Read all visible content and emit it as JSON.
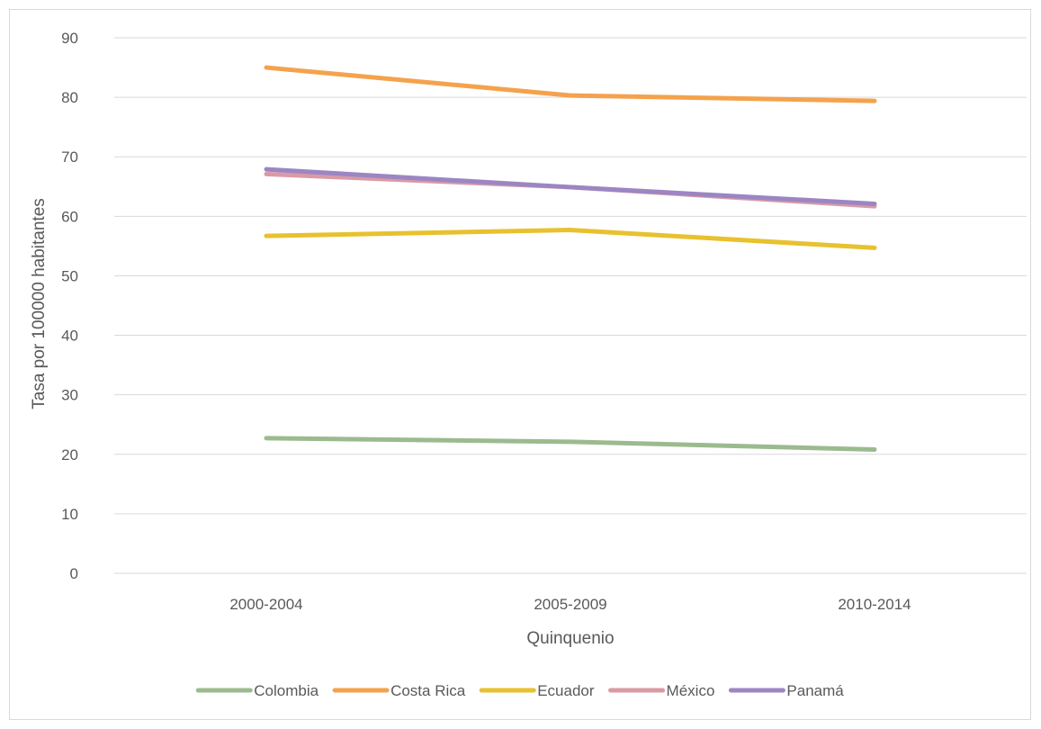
{
  "chart_data": {
    "type": "line",
    "title": "",
    "xlabel": "Quinquenio",
    "ylabel": "Tasa por 100000 habitantes",
    "categories": [
      "2000-2004",
      "2005-2009",
      "2010-2014"
    ],
    "ylim": [
      0,
      90
    ],
    "yticks": [
      "0",
      "10",
      "20",
      "30",
      "40",
      "50",
      "60",
      "70",
      "80",
      "90"
    ],
    "grid": true,
    "legend_position": "bottom",
    "series": [
      {
        "name": "Colombia",
        "color": "#9bbb8f",
        "values": [
          22.7,
          22.1,
          20.8
        ]
      },
      {
        "name": "Costa Rica",
        "color": "#f4a24d",
        "values": [
          85.0,
          80.3,
          79.4
        ]
      },
      {
        "name": "Ecuador",
        "color": "#e8c12e",
        "values": [
          56.7,
          57.7,
          54.7
        ]
      },
      {
        "name": "México",
        "color": "#d99aa6",
        "values": [
          67.1,
          64.9,
          61.7
        ]
      },
      {
        "name": "Panamá",
        "color": "#9b86c3",
        "values": [
          67.9,
          64.9,
          62.1
        ]
      }
    ]
  }
}
